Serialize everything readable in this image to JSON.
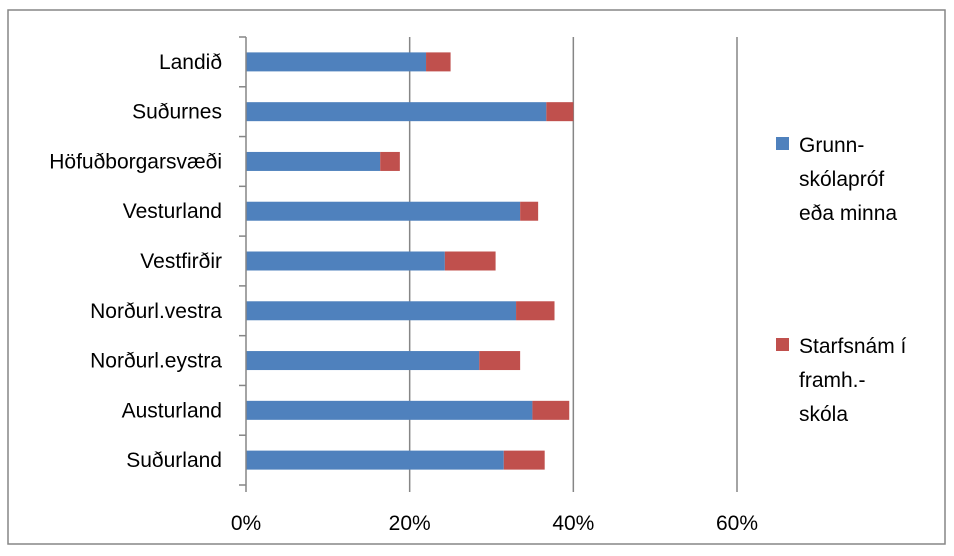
{
  "chart_data": {
    "type": "bar",
    "orientation": "horizontal",
    "stacked": true,
    "categories": [
      "Landið",
      "Suðurnes",
      "Höfuðborgarsvæði",
      "Vesturland",
      "Vestfirðir",
      "Norðurl.vestra",
      "Norðurl.eystra",
      "Austurland",
      "Suðurland"
    ],
    "series": [
      {
        "name": "Grunn-skólapróf eða minna",
        "legend_lines": [
          "Grunn-",
          "skólapróf",
          "eða minna"
        ],
        "color": "#4F81BD",
        "values": [
          22,
          36.7,
          16.4,
          33.5,
          24.3,
          33,
          28.5,
          35,
          31.5
        ]
      },
      {
        "name": "Starfsnám í framh.-skóla",
        "legend_lines": [
          "Starfsnám í",
          "framh.-",
          "skóla"
        ],
        "color": "#C0504D",
        "values": [
          3,
          3.3,
          2.4,
          2.2,
          6.2,
          4.7,
          5,
          4.5,
          5
        ]
      }
    ],
    "x_ticks": [
      "0%",
      "20%",
      "40%",
      "60%"
    ],
    "xlim": [
      0,
      60
    ],
    "grid": true,
    "legend_position": "right",
    "title": "",
    "xlabel": "",
    "ylabel": ""
  }
}
